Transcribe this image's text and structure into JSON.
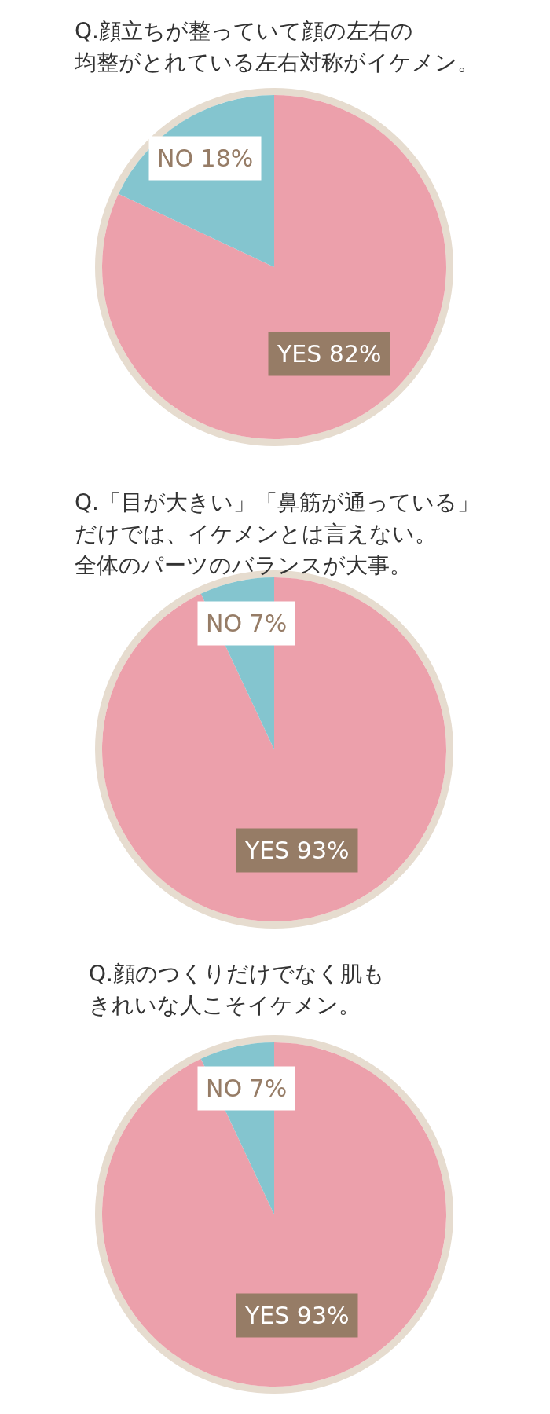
{
  "chart_data": [
    {
      "type": "pie",
      "title": "Q.顔立ちが整っていて顔の左右の均整がとれている左右対称がイケメン。",
      "categories": [
        "YES",
        "NO"
      ],
      "values": [
        82,
        18
      ],
      "colors": [
        "#eca0ab",
        "#84c5cf"
      ],
      "value_labels": [
        "82%",
        "18%"
      ],
      "legend": false
    },
    {
      "type": "pie",
      "title": "Q.「目が大きい」「鼻筋が通っている」だけでは、イケメンとは言えない。全体のパーツのバランスが大事。",
      "categories": [
        "YES",
        "NO"
      ],
      "values": [
        93,
        7
      ],
      "colors": [
        "#eca0ab",
        "#84c5cf"
      ],
      "value_labels": [
        "93%",
        "7%"
      ],
      "legend": false
    },
    {
      "type": "pie",
      "title": "Q.顔のつくりだけでなく肌もきれいな人こそイケメン。",
      "categories": [
        "YES",
        "NO"
      ],
      "values": [
        93,
        7
      ],
      "colors": [
        "#eca0ab",
        "#84c5cf"
      ],
      "value_labels": [
        "93%",
        "7%"
      ],
      "legend": false
    }
  ]
}
